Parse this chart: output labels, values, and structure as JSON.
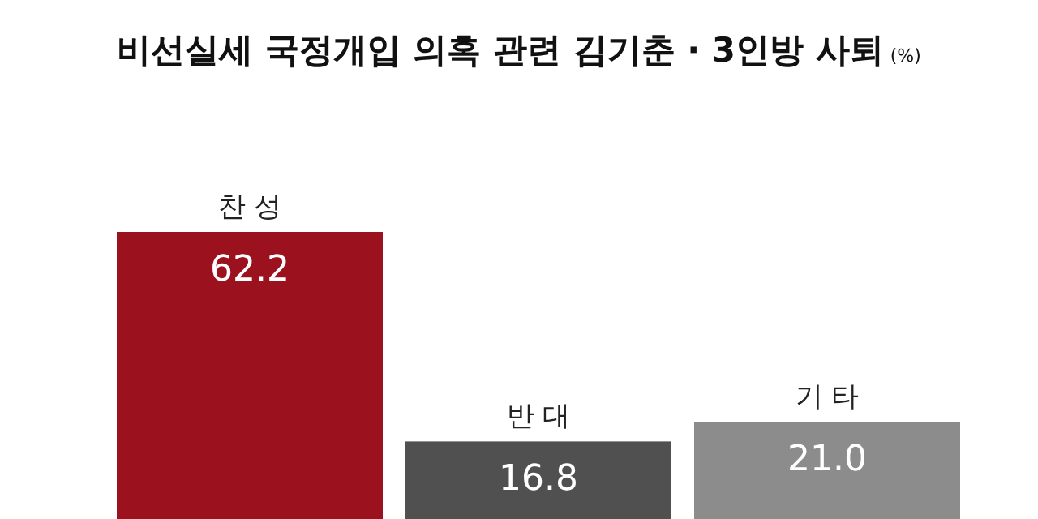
{
  "chart_data": {
    "type": "bar",
    "title": "비선실세 국정개입 의혹 관련 김기춘 · 3인방 사퇴",
    "subtitle": "(%)",
    "categories": [
      "찬 성",
      "반 대",
      "기 타"
    ],
    "values": [
      62.2,
      16.8,
      21.0
    ],
    "colors": [
      "#9b111e",
      "#505050",
      "#8c8c8c"
    ],
    "value_labels": [
      "62.2",
      "16.8",
      "21.0"
    ]
  }
}
